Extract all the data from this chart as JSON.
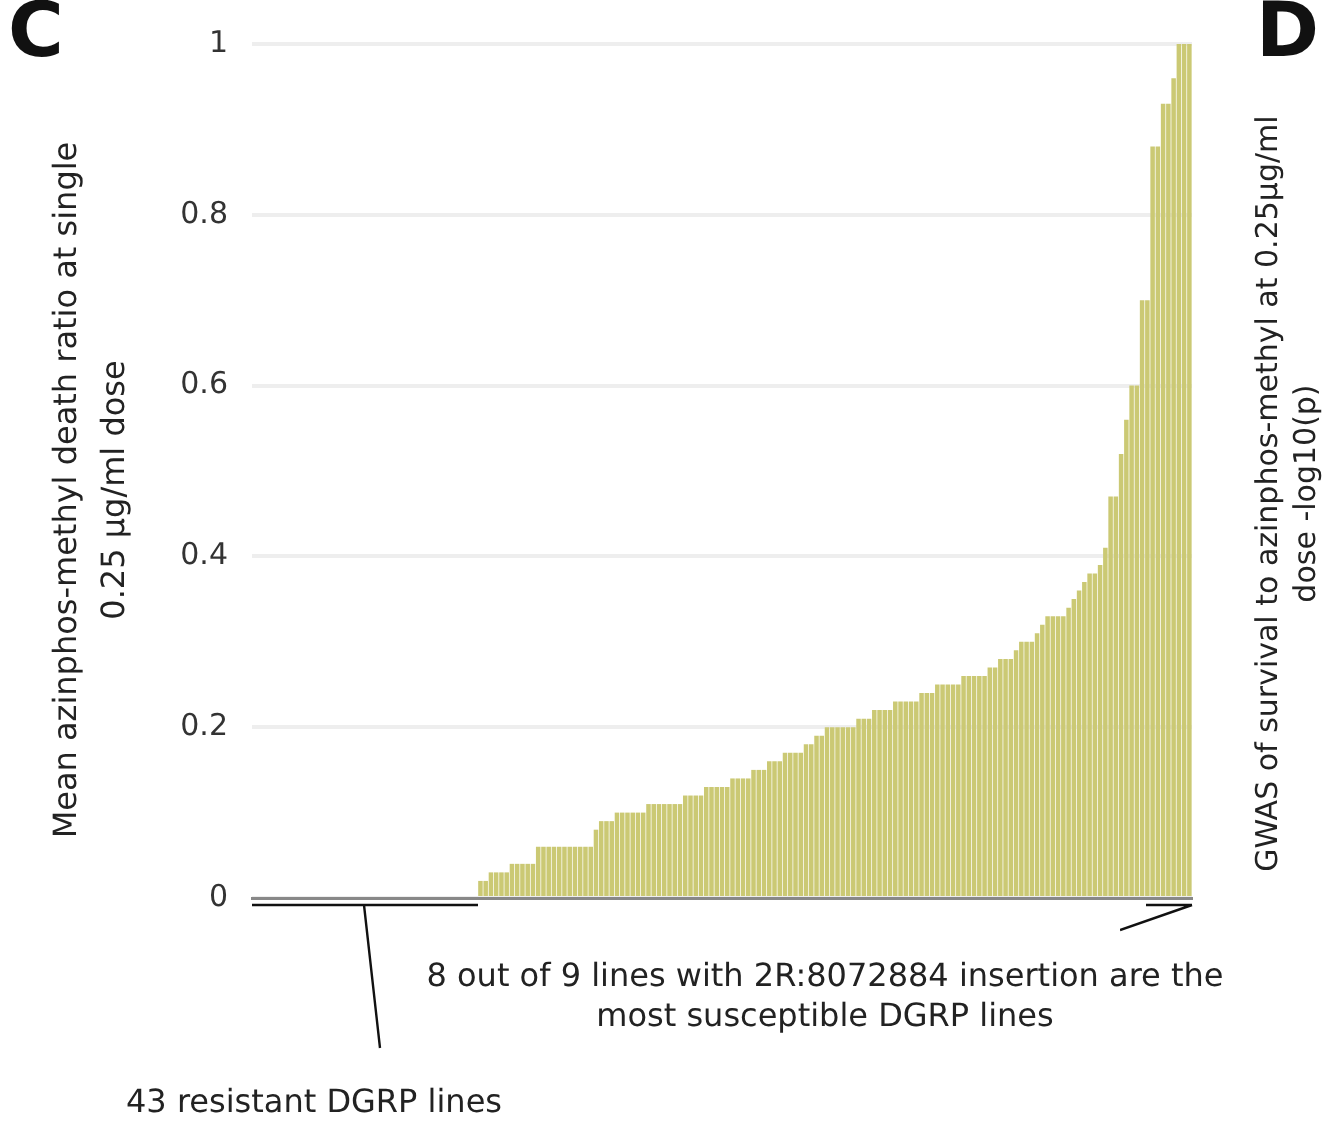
{
  "chart_data": {
    "type": "bar",
    "ylabel": "Mean azinphos-methyl death ratio at single 0.25 µg/ml dose",
    "annotations": [
      "C",
      "D",
      "GWAS of survival to azinphos-methyl at 0.25µg/ml dose -log10(p)",
      "8 out of 9 lines with 2R:8072884 insertion are the most susceptible DGRP lines",
      "43 resistant DGRP lines"
    ],
    "categories": [
      null,
      null,
      null,
      null,
      null,
      null,
      null,
      null,
      null,
      null,
      null,
      null,
      null,
      null,
      null,
      null,
      null,
      null,
      null,
      null,
      null,
      null,
      null,
      null,
      null,
      null,
      null,
      null,
      null,
      null,
      null,
      null,
      null,
      null,
      null,
      null,
      null,
      null,
      null,
      null,
      null,
      null,
      null,
      null,
      null,
      null,
      null,
      null,
      null,
      null,
      null,
      null,
      null,
      null,
      null,
      null,
      null,
      null,
      null,
      null,
      null,
      null,
      null,
      null,
      null,
      null,
      null,
      null,
      null,
      null,
      null,
      null,
      null,
      null,
      null,
      null,
      null,
      null,
      null,
      null,
      null,
      null,
      null,
      null,
      null,
      null,
      null,
      null,
      null,
      null,
      null,
      null,
      null,
      null,
      null,
      null,
      null,
      null,
      null,
      null,
      null,
      null,
      null,
      null,
      null,
      null,
      null,
      null,
      null,
      null,
      null,
      null,
      null,
      null,
      null,
      null,
      null,
      null,
      null,
      null,
      null,
      null,
      null,
      null,
      null,
      null,
      null,
      null,
      null,
      null,
      null,
      null,
      null,
      null,
      null,
      null,
      null,
      null,
      null,
      null,
      null,
      null,
      null,
      null,
      null,
      null,
      null,
      null,
      null,
      null,
      null,
      null,
      null,
      null,
      null,
      null,
      null,
      null,
      null,
      null,
      null,
      null,
      null,
      null,
      null,
      null,
      null,
      null,
      null,
      null,
      null,
      null,
      null,
      null,
      null,
      null,
      null,
      null,
      null
    ],
    "values": [
      0,
      0,
      0,
      0,
      0,
      0,
      0,
      0,
      0,
      0,
      0,
      0,
      0,
      0,
      0,
      0,
      0,
      0,
      0,
      0,
      0,
      0,
      0,
      0,
      0,
      0,
      0,
      0,
      0,
      0,
      0,
      0,
      0,
      0,
      0,
      0,
      0,
      0,
      0,
      0,
      0,
      0,
      0,
      0.02,
      0.02,
      0.03,
      0.03,
      0.03,
      0.03,
      0.04,
      0.04,
      0.04,
      0.04,
      0.04,
      0.06,
      0.06,
      0.06,
      0.06,
      0.06,
      0.06,
      0.06,
      0.06,
      0.06,
      0.06,
      0.06,
      0.08,
      0.09,
      0.09,
      0.09,
      0.1,
      0.1,
      0.1,
      0.1,
      0.1,
      0.1,
      0.11,
      0.11,
      0.11,
      0.11,
      0.11,
      0.11,
      0.11,
      0.12,
      0.12,
      0.12,
      0.12,
      0.13,
      0.13,
      0.13,
      0.13,
      0.13,
      0.14,
      0.14,
      0.14,
      0.14,
      0.15,
      0.15,
      0.15,
      0.16,
      0.16,
      0.16,
      0.17,
      0.17,
      0.17,
      0.17,
      0.18,
      0.18,
      0.19,
      0.19,
      0.2,
      0.2,
      0.2,
      0.2,
      0.2,
      0.2,
      0.21,
      0.21,
      0.21,
      0.22,
      0.22,
      0.22,
      0.22,
      0.23,
      0.23,
      0.23,
      0.23,
      0.23,
      0.24,
      0.24,
      0.24,
      0.25,
      0.25,
      0.25,
      0.25,
      0.25,
      0.26,
      0.26,
      0.26,
      0.26,
      0.26,
      0.27,
      0.27,
      0.28,
      0.28,
      0.28,
      0.29,
      0.3,
      0.3,
      0.3,
      0.31,
      0.32,
      0.33,
      0.33,
      0.33,
      0.33,
      0.34,
      0.35,
      0.36,
      0.37,
      0.38,
      0.38,
      0.39,
      0.41,
      0.47,
      0.47,
      0.52,
      0.56,
      0.6,
      0.6,
      0.7,
      0.7,
      0.88,
      0.88,
      0.93,
      0.93,
      0.96,
      1,
      1,
      1
    ],
    "color": "#cbc974",
    "ylim": [
      0,
      1
    ],
    "yticks": [
      0,
      0.2,
      0.4,
      0.6,
      0.8,
      1
    ],
    "grid": "y",
    "legend": false,
    "tick_labels": "y"
  }
}
